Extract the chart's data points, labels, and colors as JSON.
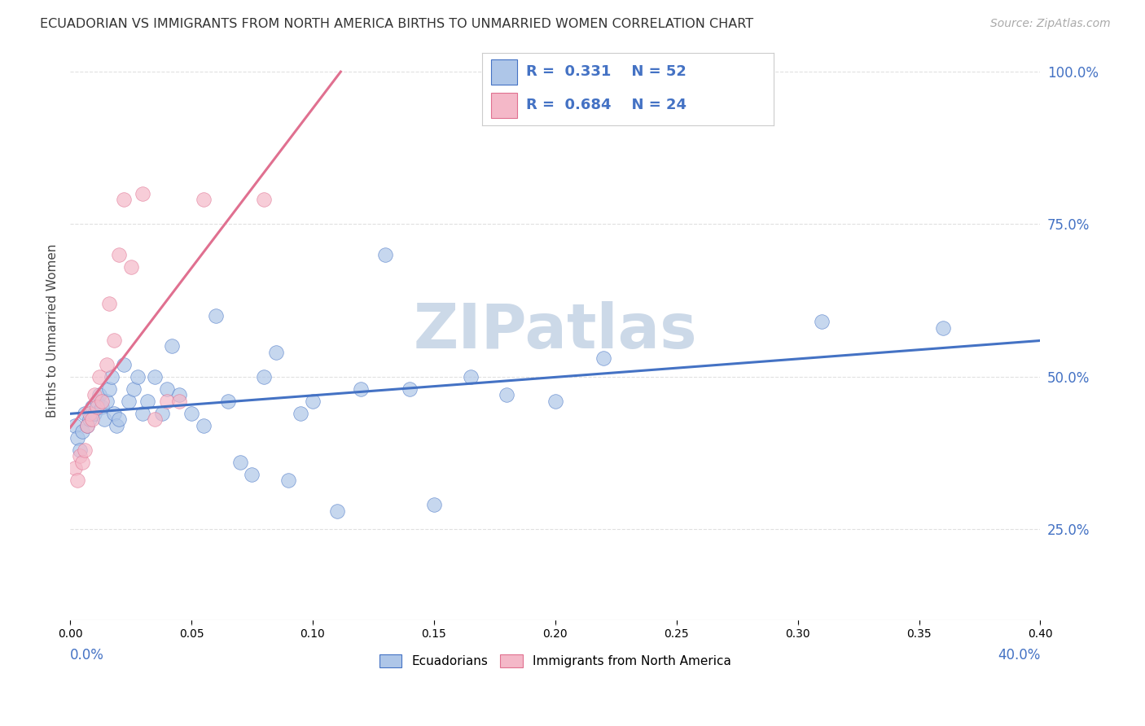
{
  "title": "ECUADORIAN VS IMMIGRANTS FROM NORTH AMERICA BIRTHS TO UNMARRIED WOMEN CORRELATION CHART",
  "source": "Source: ZipAtlas.com",
  "ylabel": "Births to Unmarried Women",
  "xlim": [
    0.0,
    0.4
  ],
  "ylim": [
    0.1,
    1.05
  ],
  "ytick_values": [
    0.25,
    0.5,
    0.75,
    1.0
  ],
  "ytick_labels": [
    "25.0%",
    "50.0%",
    "75.0%",
    "100.0%"
  ],
  "blue_color": "#aec6e8",
  "blue_color_dark": "#4472c4",
  "pink_color": "#f4b8c8",
  "pink_color_dark": "#e07090",
  "R_blue": 0.331,
  "N_blue": 52,
  "R_pink": 0.684,
  "N_pink": 24,
  "blue_scatter_x": [
    0.002,
    0.003,
    0.004,
    0.005,
    0.006,
    0.007,
    0.008,
    0.009,
    0.01,
    0.011,
    0.012,
    0.013,
    0.014,
    0.015,
    0.016,
    0.017,
    0.018,
    0.019,
    0.02,
    0.022,
    0.024,
    0.026,
    0.028,
    0.03,
    0.032,
    0.035,
    0.038,
    0.04,
    0.042,
    0.045,
    0.05,
    0.055,
    0.06,
    0.065,
    0.07,
    0.075,
    0.08,
    0.085,
    0.09,
    0.095,
    0.1,
    0.11,
    0.12,
    0.13,
    0.14,
    0.15,
    0.165,
    0.18,
    0.2,
    0.22,
    0.31,
    0.36
  ],
  "blue_scatter_y": [
    0.42,
    0.4,
    0.38,
    0.41,
    0.44,
    0.42,
    0.43,
    0.45,
    0.44,
    0.46,
    0.47,
    0.45,
    0.43,
    0.46,
    0.48,
    0.5,
    0.44,
    0.42,
    0.43,
    0.52,
    0.46,
    0.48,
    0.5,
    0.44,
    0.46,
    0.5,
    0.44,
    0.48,
    0.55,
    0.47,
    0.44,
    0.42,
    0.6,
    0.46,
    0.36,
    0.34,
    0.5,
    0.54,
    0.33,
    0.44,
    0.46,
    0.28,
    0.48,
    0.7,
    0.48,
    0.29,
    0.5,
    0.47,
    0.46,
    0.53,
    0.59,
    0.58
  ],
  "pink_scatter_x": [
    0.002,
    0.003,
    0.004,
    0.005,
    0.006,
    0.007,
    0.008,
    0.009,
    0.01,
    0.011,
    0.012,
    0.013,
    0.015,
    0.016,
    0.018,
    0.02,
    0.022,
    0.025,
    0.03,
    0.035,
    0.04,
    0.045,
    0.055,
    0.08
  ],
  "pink_scatter_y": [
    0.35,
    0.33,
    0.37,
    0.36,
    0.38,
    0.42,
    0.44,
    0.43,
    0.47,
    0.45,
    0.5,
    0.46,
    0.52,
    0.62,
    0.56,
    0.7,
    0.79,
    0.68,
    0.8,
    0.43,
    0.46,
    0.46,
    0.79,
    0.79
  ],
  "watermark": "ZIPatlas",
  "watermark_color": "#ccd9e8",
  "background_color": "#ffffff",
  "grid_color": "#e0e0e0",
  "grid_linestyle": "--"
}
